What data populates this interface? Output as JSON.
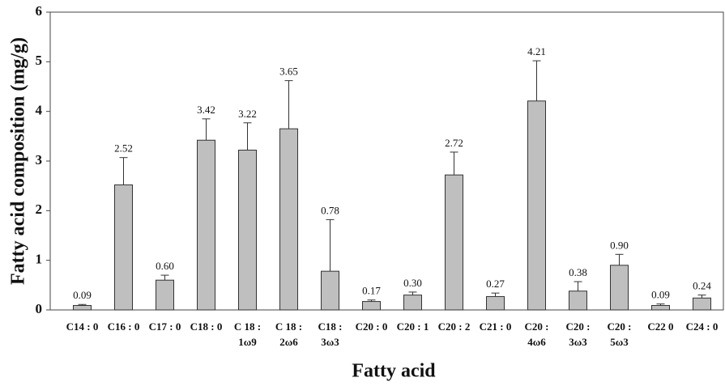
{
  "chart_data": {
    "type": "bar",
    "x_label": "Fatty acid",
    "y_label": "Fatty acid composition (mg/g)",
    "categories": [
      "C14 : 0",
      "C16 : 0",
      "C17 : 0",
      "C18 : 0",
      [
        "C 18 :",
        "1ω9"
      ],
      [
        "C 18 :",
        "2ω6"
      ],
      [
        "C18 :",
        "3ω3"
      ],
      "C20 : 0",
      "C20 : 1",
      "C20 : 2",
      "C21 : 0",
      [
        "C20 :",
        "4ω6"
      ],
      [
        "C20 :",
        "3ω3"
      ],
      [
        "C20 :",
        "5ω3"
      ],
      "C22 0",
      "C24 : 0"
    ],
    "values": [
      0.09,
      2.52,
      0.6,
      3.42,
      3.22,
      3.65,
      0.78,
      0.17,
      0.3,
      2.72,
      0.27,
      4.21,
      0.38,
      0.9,
      0.09,
      0.24
    ],
    "value_labels": [
      "0.09",
      "2.52",
      "0.60",
      "3.42",
      "3.22",
      "3.65",
      "0.78",
      "0.17",
      "0.30",
      "2.72",
      "0.27",
      "4.21",
      "0.38",
      "0.90",
      "0.09",
      "0.24"
    ],
    "errors": [
      0.02,
      0.55,
      0.1,
      0.43,
      0.55,
      0.97,
      1.04,
      0.03,
      0.06,
      0.46,
      0.07,
      0.81,
      0.19,
      0.22,
      0.03,
      0.06
    ],
    "color": "#bfbfbf",
    "ylim": [
      0,
      6
    ],
    "yticks": [
      0,
      1,
      2,
      3,
      4,
      5,
      6
    ],
    "grid": false
  }
}
